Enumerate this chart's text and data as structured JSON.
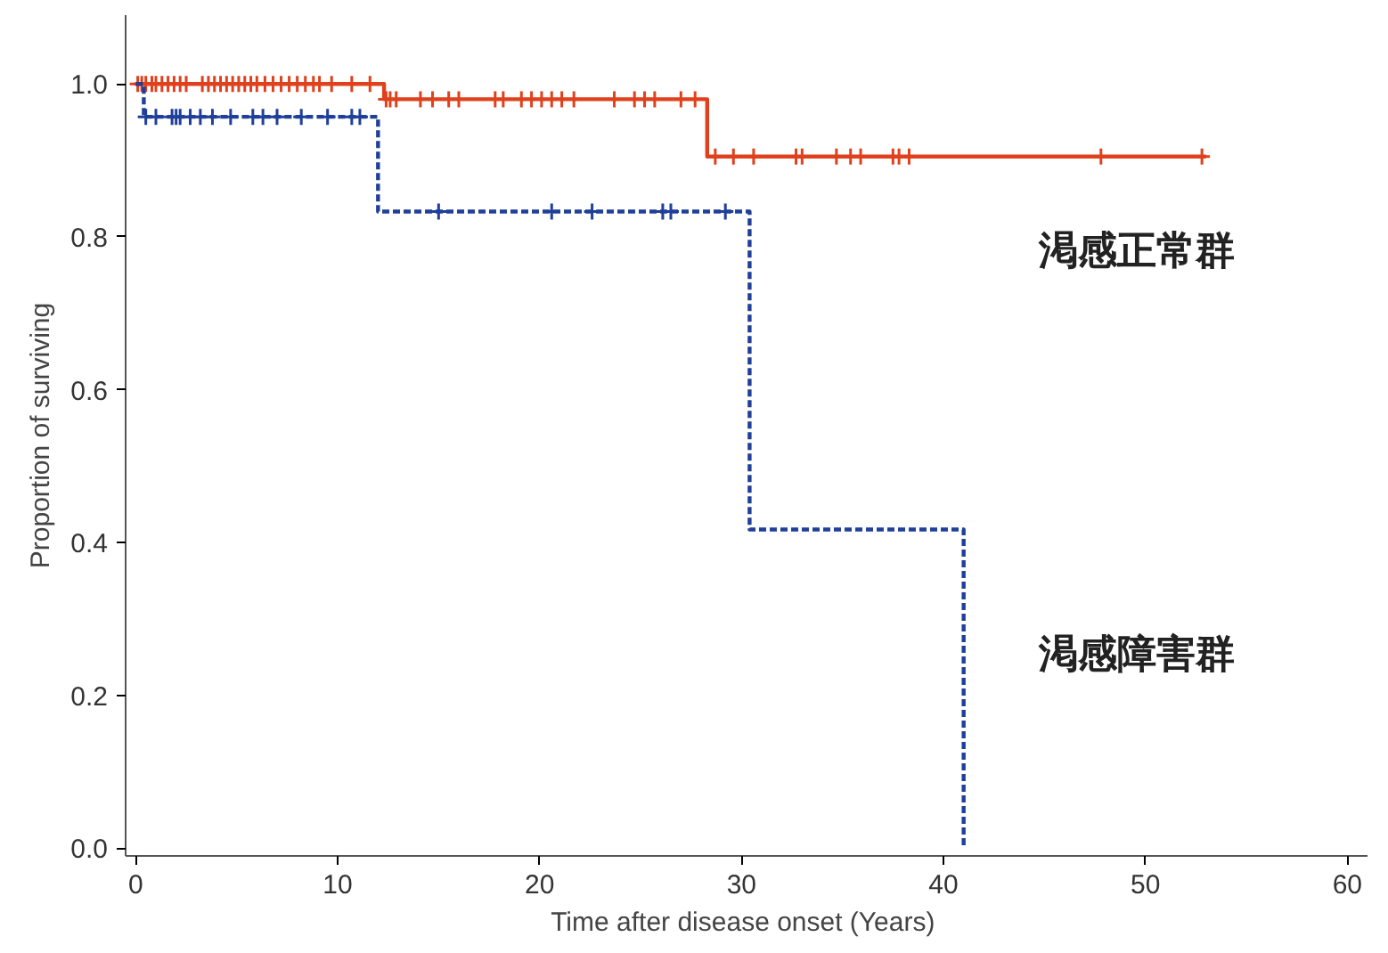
{
  "chart_data": {
    "type": "step",
    "xlabel": "Time after disease onset  (Years)",
    "ylabel": "Proportion of surviving",
    "xlim": [
      -0.5,
      61
    ],
    "ylim": [
      -0.01,
      1.09
    ],
    "xticks": [
      0,
      10,
      20,
      30,
      40,
      50,
      60
    ],
    "yticks": [
      {
        "value": 0,
        "label": "0.0"
      },
      0.2,
      0.4,
      0.6,
      0.8,
      {
        "value": 1,
        "label": "1.0"
      }
    ],
    "grid": false,
    "series": [
      {
        "color": "#e0401c",
        "line_style": "solid",
        "x": [
          0,
          12.3,
          28.3,
          53.0
        ],
        "values": [
          1.0,
          0.98,
          0.905,
          0.905
        ]
      },
      {
        "color": "#1f3f99",
        "line_style": "dashed",
        "x": [
          0,
          0.4,
          12.0,
          30.4,
          41.0
        ],
        "values": [
          1.0,
          0.957,
          0.833,
          0.417,
          0.0
        ]
      },
      {
        "type": "scatter",
        "marker": "cross",
        "color": "#e0401c",
        "x": [
          0.1,
          0.3,
          0.5,
          0.8,
          1.0,
          1.3,
          1.6,
          1.9,
          2.2,
          2.5,
          3.3,
          3.6,
          3.9,
          4.2,
          4.5,
          4.8,
          5.1,
          5.4,
          5.7,
          6.0,
          6.4,
          6.8,
          7.2,
          7.6,
          8.0,
          8.4,
          8.8,
          9.1,
          9.7,
          10.7,
          11.6
        ],
        "values": [
          1.0,
          1.0,
          1.0,
          1.0,
          1.0,
          1.0,
          1.0,
          1.0,
          1.0,
          1.0,
          1.0,
          1.0,
          1.0,
          1.0,
          1.0,
          1.0,
          1.0,
          1.0,
          1.0,
          1.0,
          1.0,
          1.0,
          1.0,
          1.0,
          1.0,
          1.0,
          1.0,
          1.0,
          1.0,
          1.0,
          1.0
        ]
      },
      {
        "type": "scatter",
        "marker": "cross",
        "color": "#e0401c",
        "x": [
          12.4,
          12.6,
          12.9,
          14.1,
          14.7,
          15.5,
          16.0,
          17.8,
          18.2,
          19.1,
          19.6,
          20.1,
          20.6,
          21.1,
          21.7,
          23.7,
          24.7,
          25.2,
          25.7,
          27.0,
          27.7
        ],
        "values": [
          0.98,
          0.98,
          0.98,
          0.98,
          0.98,
          0.98,
          0.98,
          0.98,
          0.98,
          0.98,
          0.98,
          0.98,
          0.98,
          0.98,
          0.98,
          0.98,
          0.98,
          0.98,
          0.98,
          0.98,
          0.98
        ]
      },
      {
        "type": "scatter",
        "marker": "cross",
        "color": "#e0401c",
        "x": [
          28.7,
          29.6,
          30.6,
          32.7,
          33.0,
          34.7,
          35.4,
          35.9,
          37.5,
          37.8,
          38.3,
          47.8,
          52.8
        ],
        "values": [
          0.905,
          0.905,
          0.905,
          0.905,
          0.905,
          0.905,
          0.905,
          0.905,
          0.905,
          0.905,
          0.905,
          0.905,
          0.905
        ]
      },
      {
        "type": "scatter",
        "marker": "cross",
        "color": "#1f3f99",
        "x": [
          0.5,
          1.0,
          1.8,
          2.0,
          2.2,
          2.7,
          3.2,
          3.8,
          4.7,
          5.8,
          6.3,
          7.0,
          8.2,
          9.5,
          10.7,
          11.1
        ],
        "values": [
          0.957,
          0.957,
          0.957,
          0.957,
          0.957,
          0.957,
          0.957,
          0.957,
          0.957,
          0.957,
          0.957,
          0.957,
          0.957,
          0.957,
          0.957,
          0.957
        ]
      },
      {
        "type": "scatter",
        "marker": "cross",
        "color": "#1f3f99",
        "x": [
          15.0,
          20.6,
          22.6,
          26.1,
          26.5,
          29.2
        ],
        "values": [
          0.833,
          0.833,
          0.833,
          0.833,
          0.833,
          0.833
        ]
      }
    ],
    "annotations": [
      "渇感正常群",
      "渇感障害群"
    ]
  }
}
